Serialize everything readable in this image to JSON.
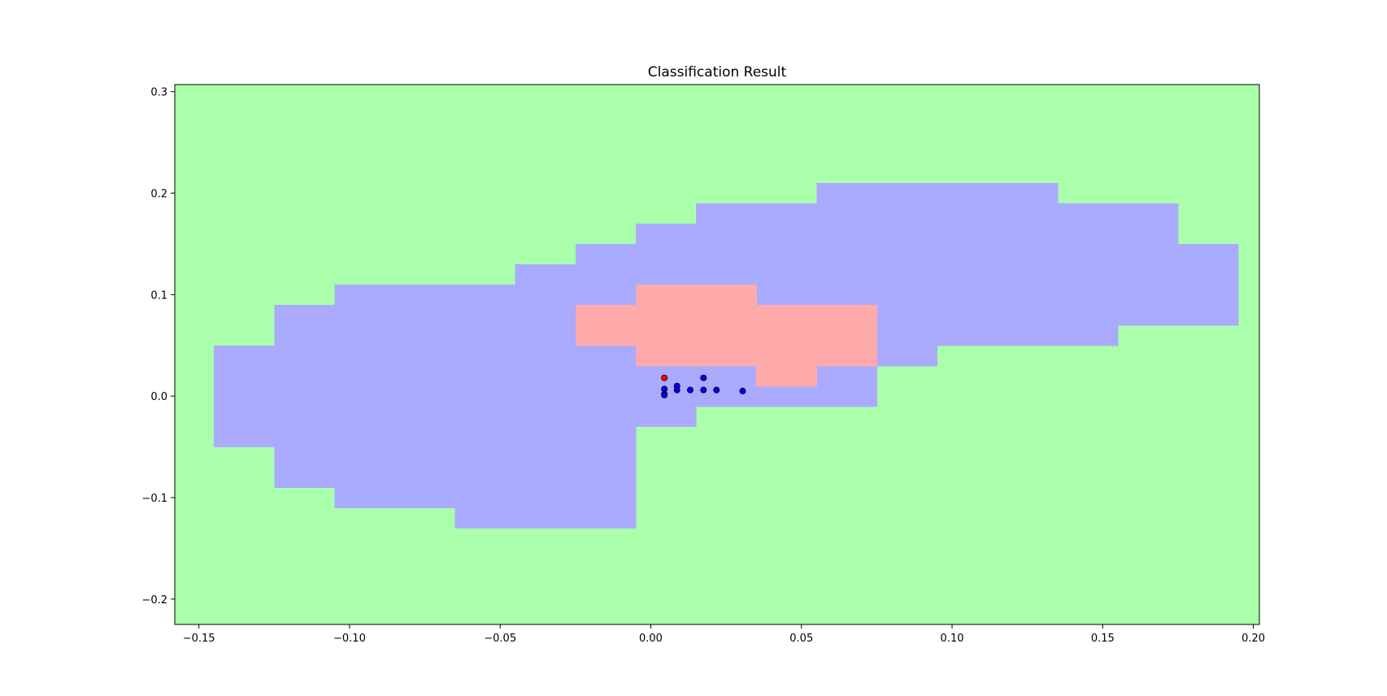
{
  "chart_data": {
    "type": "heatmap",
    "title": "Classification Result",
    "xlabel": "",
    "ylabel": "",
    "xlim": [
      -0.158,
      0.202
    ],
    "ylim": [
      -0.225,
      0.307
    ],
    "x_ticks": [
      "−0.15",
      "−0.10",
      "−0.05",
      "0.00",
      "0.05",
      "0.10",
      "0.15",
      "0.20"
    ],
    "x_tick_values": [
      -0.15,
      -0.1,
      -0.05,
      0.0,
      0.05,
      0.1,
      0.15,
      0.2
    ],
    "y_ticks": [
      "0.3",
      "0.2",
      "0.1",
      "0.0",
      "−0.1",
      "−0.2"
    ],
    "y_tick_values": [
      0.3,
      0.2,
      0.1,
      0.0,
      -0.1,
      -0.2
    ],
    "grid": false,
    "colors": {
      "class_green": "#aaffaa",
      "class_blue": "#aaaaff",
      "class_red": "#ffaaaa",
      "point_blue": "#0000ff",
      "point_red": "#ff0000"
    },
    "background_class": "green",
    "regions": [
      {
        "class": "blue",
        "x0": -0.145,
        "x1": -0.125,
        "y0": -0.05,
        "y1": 0.05
      },
      {
        "class": "blue",
        "x0": -0.125,
        "x1": -0.105,
        "y0": -0.09,
        "y1": 0.09
      },
      {
        "class": "blue",
        "x0": -0.105,
        "x1": -0.065,
        "y0": -0.11,
        "y1": 0.11
      },
      {
        "class": "blue",
        "x0": -0.065,
        "x1": -0.045,
        "y0": -0.13,
        "y1": 0.11
      },
      {
        "class": "blue",
        "x0": -0.045,
        "x1": -0.025,
        "y0": -0.13,
        "y1": 0.13
      },
      {
        "class": "blue",
        "x0": -0.025,
        "x1": -0.005,
        "y0": -0.13,
        "y1": 0.15
      },
      {
        "class": "blue",
        "x0": -0.005,
        "x1": 0.015,
        "y0": -0.03,
        "y1": 0.17
      },
      {
        "class": "blue",
        "x0": 0.015,
        "x1": 0.055,
        "y0": -0.01,
        "y1": 0.19
      },
      {
        "class": "blue",
        "x0": 0.055,
        "x1": 0.075,
        "y0": -0.01,
        "y1": 0.21
      },
      {
        "class": "blue",
        "x0": 0.075,
        "x1": 0.095,
        "y0": 0.03,
        "y1": 0.21
      },
      {
        "class": "blue",
        "x0": 0.095,
        "x1": 0.135,
        "y0": 0.05,
        "y1": 0.21
      },
      {
        "class": "blue",
        "x0": 0.135,
        "x1": 0.155,
        "y0": 0.05,
        "y1": 0.19
      },
      {
        "class": "blue",
        "x0": 0.155,
        "x1": 0.175,
        "y0": 0.07,
        "y1": 0.19
      },
      {
        "class": "blue",
        "x0": 0.175,
        "x1": 0.195,
        "y0": 0.07,
        "y1": 0.15
      },
      {
        "class": "red",
        "x0": -0.025,
        "x1": -0.005,
        "y0": 0.05,
        "y1": 0.09
      },
      {
        "class": "red",
        "x0": -0.005,
        "x1": 0.035,
        "y0": 0.03,
        "y1": 0.11
      },
      {
        "class": "red",
        "x0": 0.035,
        "x1": 0.055,
        "y0": 0.01,
        "y1": 0.09
      },
      {
        "class": "red",
        "x0": 0.055,
        "x1": 0.075,
        "y0": 0.03,
        "y1": 0.09
      }
    ],
    "points": [
      {
        "x": 0.0045,
        "y": 0.018,
        "class": "red"
      },
      {
        "x": 0.0045,
        "y": 0.007,
        "class": "blue"
      },
      {
        "x": 0.0045,
        "y": 0.002,
        "class": "blue"
      },
      {
        "x": 0.0045,
        "y": 0.001,
        "class": "blue"
      },
      {
        "x": 0.0087,
        "y": 0.01,
        "class": "blue"
      },
      {
        "x": 0.0087,
        "y": 0.006,
        "class": "blue"
      },
      {
        "x": 0.0131,
        "y": 0.006,
        "class": "blue"
      },
      {
        "x": 0.0175,
        "y": 0.018,
        "class": "blue"
      },
      {
        "x": 0.0175,
        "y": 0.006,
        "class": "blue"
      },
      {
        "x": 0.0218,
        "y": 0.006,
        "class": "blue"
      },
      {
        "x": 0.0305,
        "y": 0.005,
        "class": "blue"
      }
    ]
  }
}
